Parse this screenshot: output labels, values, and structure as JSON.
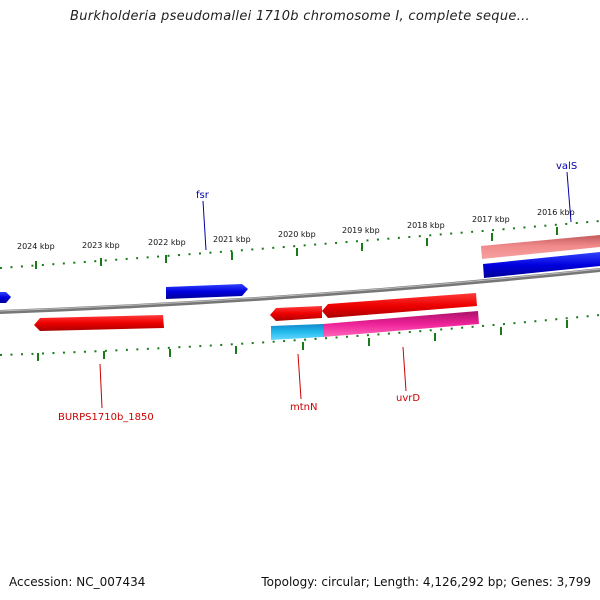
{
  "title": "Burkholderia pseudomallei 1710b chromosome I, complete seque...",
  "footer": {
    "accession": "Accession: NC_007434",
    "summary": "Topology: circular; Length: 4,126,292 bp; Genes: 3,799"
  },
  "colors": {
    "backbone": "#808080",
    "ticks": "#1a7a1a",
    "forward_gene": "#0000dd",
    "reverse_gene": "#ee0000",
    "pseudo_gene": "#f08080",
    "misc_feature": "#22bbee",
    "repeat_feature": "#ee2299",
    "label_blue": "#0000aa",
    "label_red": "#cc0000"
  },
  "scale_labels": [
    "2024 kbp",
    "2023 kbp",
    "2022 kbp",
    "2021 kbp",
    "2020 kbp",
    "2019 kbp",
    "2018 kbp",
    "2017 kbp",
    "2016 kbp"
  ],
  "gene_labels": {
    "fsr": "fsr",
    "valS": "valS",
    "burps": "BURPS1710b_1850",
    "mtnN": "mtnN",
    "uvrD": "uvrD"
  }
}
